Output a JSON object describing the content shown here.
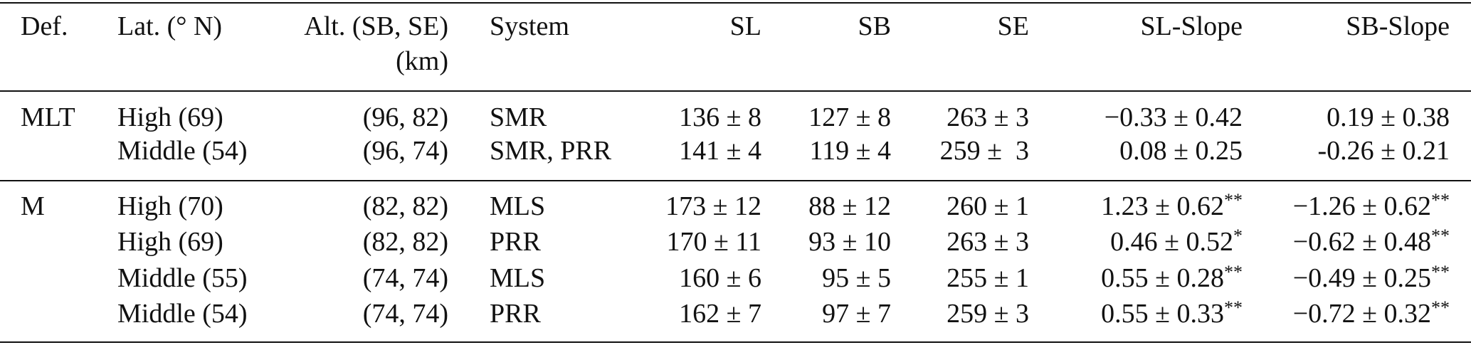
{
  "table": {
    "columns": [
      "Def.",
      "Lat. (° N)",
      "Alt. (SB, SE)",
      "System",
      "SL",
      "SB",
      "SE",
      "SL-Slope",
      "SB-Slope"
    ],
    "alt_unit": "(km)",
    "groups": [
      {
        "def": "MLT",
        "rows": [
          [
            "High (69)",
            "(96, 82)",
            "SMR",
            "136 ± 8",
            "127 ± 8",
            "263 ± 3",
            "−0.33 ± 0.42",
            "0.19 ± 0.38"
          ],
          [
            "Middle (54)",
            "(96, 74)",
            "SMR, PRR",
            "141 ± 4",
            "119 ± 4",
            "259 ±  3",
            "0.08 ± 0.25",
            "-0.26 ± 0.21"
          ]
        ]
      },
      {
        "def": "M",
        "rows": [
          [
            "High (70)",
            "(82, 82)",
            "MLS",
            "173 ± 12",
            "88 ± 12",
            "260 ± 1",
            {
              "text": "1.23 ± 0.62",
              "sup": "**"
            },
            {
              "text": "−1.26 ± 0.62",
              "sup": "**"
            }
          ],
          [
            "High (69)",
            "(82, 82)",
            "PRR",
            "170 ± 11",
            "93 ± 10",
            "263 ± 3",
            {
              "text": "0.46 ± 0.52",
              "sup": "*"
            },
            {
              "text": "−0.62 ± 0.48",
              "sup": "**"
            }
          ],
          [
            "Middle (55)",
            "(74, 74)",
            "MLS",
            "160 ± 6",
            "95 ± 5",
            "255 ± 1",
            {
              "text": "0.55 ± 0.28",
              "sup": "**"
            },
            {
              "text": "−0.49 ± 0.25",
              "sup": "**"
            }
          ],
          [
            "Middle (54)",
            "(74, 74)",
            "PRR",
            "162 ± 7",
            "97 ± 7",
            "259 ± 3",
            {
              "text": "0.55 ± 0.33",
              "sup": "**"
            },
            {
              "text": "−0.72 ± 0.32",
              "sup": "**"
            }
          ]
        ]
      }
    ]
  }
}
